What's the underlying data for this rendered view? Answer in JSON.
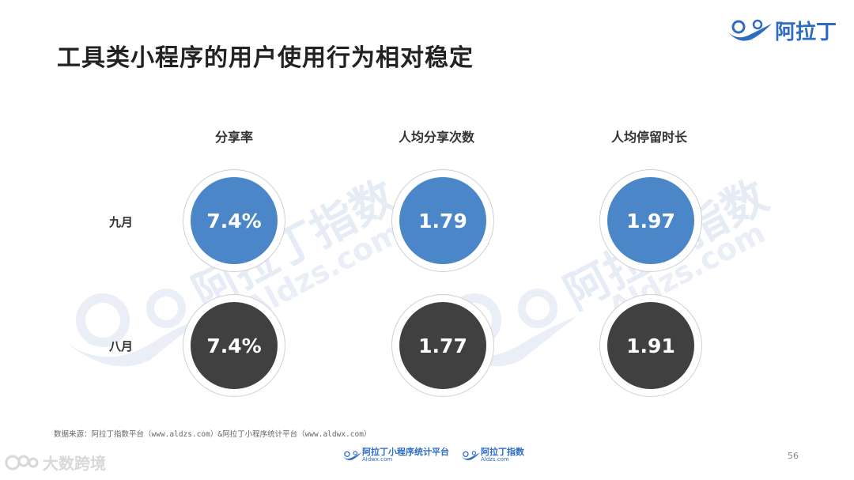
{
  "title": "工具类小程序的用户使用行为相对稳定",
  "brand": {
    "text": "阿拉丁",
    "color": "#2e6cc4"
  },
  "watermark": {
    "text": "阿拉丁指数",
    "url": "Aldzs.com"
  },
  "columns": [
    {
      "header": "分享率"
    },
    {
      "header": "人均分享次数"
    },
    {
      "header": "人均停留时长"
    }
  ],
  "rows": [
    {
      "label": "九月",
      "color": "#4a86c8",
      "values": [
        "7.4%",
        "1.79",
        "1.97"
      ]
    },
    {
      "label": "八月",
      "color": "#404040",
      "values": [
        "7.4%",
        "1.77",
        "1.91"
      ]
    }
  ],
  "source": "数据来源：阿拉丁指数平台（www.aldzs.com）&阿拉丁小程序统计平台（www.aldwx.com）",
  "footer": {
    "logo1": {
      "main": "阿拉丁小程序统计平台",
      "sub": "Aldwx.com"
    },
    "logo2": {
      "main": "阿拉丁指数",
      "sub": "Aldzs.com"
    }
  },
  "page_number": "56",
  "corner_watermark": "大数跨境",
  "icons": [
    "aladdin-lamp-icon",
    "corner-logo-icon"
  ]
}
